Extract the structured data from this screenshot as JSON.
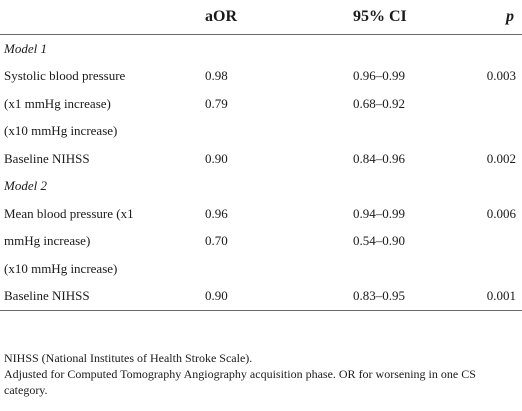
{
  "table": {
    "headers": {
      "label": "",
      "aor": "aOR",
      "ci": "95% CI",
      "p": "p"
    },
    "rows": [
      {
        "type": "section",
        "label": "Model 1",
        "aor": "",
        "ci": "",
        "p": ""
      },
      {
        "type": "data",
        "label": "Systolic blood pressure",
        "aor": "0.98",
        "ci": "0.96–0.99",
        "p": "0.003"
      },
      {
        "type": "data",
        "label": "(x1 mmHg increase)",
        "aor": "0.79",
        "ci": "0.68–0.92",
        "p": ""
      },
      {
        "type": "data",
        "label": "(x10 mmHg increase)",
        "aor": "",
        "ci": "",
        "p": ""
      },
      {
        "type": "data",
        "label": "Baseline NIHSS",
        "aor": "0.90",
        "ci": "0.84–0.96",
        "p": "0.002"
      },
      {
        "type": "section",
        "label": "Model 2",
        "aor": "",
        "ci": "",
        "p": ""
      },
      {
        "type": "data",
        "label": "Mean blood pressure (x1",
        "aor": "0.96",
        "ci": "0.94–0.99",
        "p": "0.006"
      },
      {
        "type": "data",
        "label": "mmHg increase)",
        "aor": "0.70",
        "ci": "0.54–0.90",
        "p": ""
      },
      {
        "type": "data",
        "label": "(x10 mmHg increase)",
        "aor": "",
        "ci": "",
        "p": ""
      },
      {
        "type": "data",
        "label": "Baseline NIHSS",
        "aor": "0.90",
        "ci": "0.83–0.95",
        "p": "0.001"
      }
    ]
  },
  "footnotes": [
    "NIHSS (National Institutes of Health Stroke Scale).",
    "Adjusted for Computed Tomography Angiography acquisition phase. OR for worsening in one CS category."
  ]
}
